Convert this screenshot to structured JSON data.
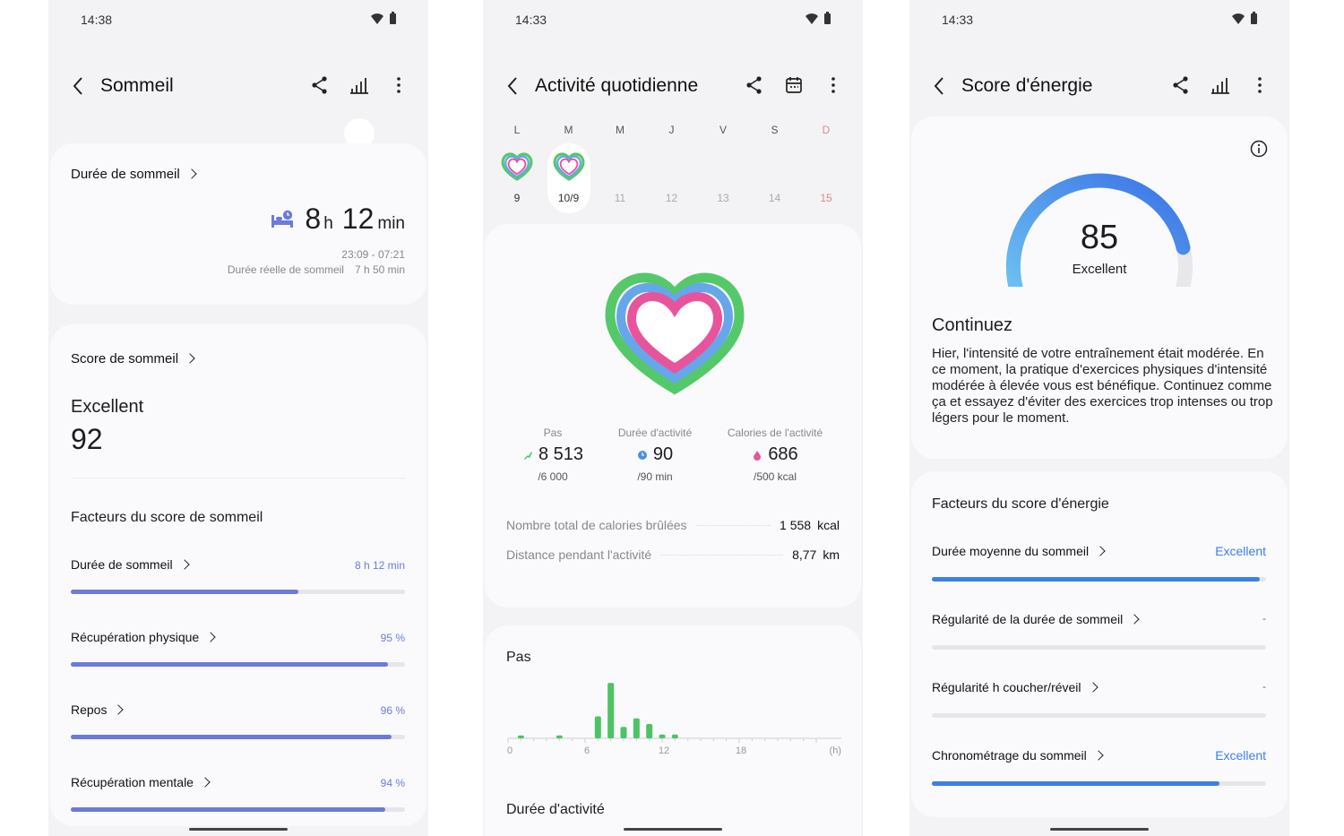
{
  "colors": {
    "accent_sleep": "#6c7bd9",
    "accent_energy": "#3e7ee8",
    "steps_green": "#4cc463",
    "sunday_red": "#e08a8a"
  },
  "screen1": {
    "status_time": "14:38",
    "title": "Sommeil",
    "duration_card": {
      "label": "Durée de sommeil",
      "hours": "8",
      "hours_unit": "h",
      "minutes": "12",
      "minutes_unit": "min",
      "range": "23:09 - 07:21",
      "actual_label": "Durée réelle de sommeil",
      "actual_value": "7 h 50 min"
    },
    "score_card": {
      "label": "Score de sommeil",
      "rating": "Excellent",
      "score": "92",
      "factors_title": "Facteurs du score de sommeil",
      "factors": [
        {
          "label": "Durée de sommeil",
          "value": "8 h 12 min",
          "fill": 0.68
        },
        {
          "label": "Récupération physique",
          "value": "95 %",
          "fill": 0.95
        },
        {
          "label": "Repos",
          "value": "96 %",
          "fill": 0.96
        },
        {
          "label": "Récupération mentale",
          "value": "94 %",
          "fill": 0.94
        }
      ]
    }
  },
  "screen2": {
    "status_time": "14:33",
    "title": "Activité quotidienne",
    "week": [
      {
        "day": "L",
        "date": "9",
        "state": "ring"
      },
      {
        "day": "M",
        "date": "10/9",
        "state": "selected"
      },
      {
        "day": "M",
        "date": "11",
        "state": "future"
      },
      {
        "day": "J",
        "date": "12",
        "state": "future"
      },
      {
        "day": "V",
        "date": "13",
        "state": "future"
      },
      {
        "day": "S",
        "date": "14",
        "state": "future"
      },
      {
        "day": "D",
        "date": "15",
        "state": "sunday"
      }
    ],
    "stats": [
      {
        "label": "Pas",
        "value": "8 513",
        "goal": "/6 000",
        "icon": "steps-icon",
        "color": "#4cc463"
      },
      {
        "label": "Durée d'activité",
        "value": "90",
        "goal": "/90 min",
        "icon": "clock-icon",
        "color": "#4a8fe6"
      },
      {
        "label": "Calories de l'activité",
        "value": "686",
        "goal": "/500 kcal",
        "icon": "flame-icon",
        "color": "#e4559a"
      }
    ],
    "totals": [
      {
        "label": "Nombre total de calories brûlées",
        "value": "1 558",
        "unit": "kcal"
      },
      {
        "label": "Distance pendant l'activité",
        "value": "8,77",
        "unit": "km"
      }
    ],
    "steps_chart_title": "Pas",
    "activity_title": "Durée d'activité",
    "chart_data": {
      "type": "bar",
      "title": "Pas",
      "xlabel": "(h)",
      "x_ticks": [
        "0",
        "6",
        "12",
        "18"
      ],
      "x": [
        1,
        4,
        7,
        8,
        9,
        10,
        11,
        12,
        13
      ],
      "values": [
        150,
        150,
        1150,
        2900,
        600,
        1050,
        750,
        200,
        200
      ],
      "xlim": [
        0,
        24
      ],
      "ylim": [
        0,
        3000
      ]
    }
  },
  "screen3": {
    "status_time": "14:33",
    "title": "Score d'énergie",
    "score": "85",
    "score_fraction": 0.85,
    "rating": "Excellent",
    "heading": "Continuez",
    "body": "Hier, l'intensité de votre entraînement était modérée. En ce moment, la pratique d'exercices physiques d'intensité modérée à élevée vous est bénéfique. Continuez comme ça et essayez d'éviter des exercices trop intenses ou trop légers pour le moment.",
    "factors_title": "Facteurs du score d'énergie",
    "factors": [
      {
        "label": "Durée moyenne du sommeil",
        "value": "Excellent",
        "fill": 0.98
      },
      {
        "label": "Régularité de la durée de sommeil",
        "value": "-",
        "fill": 0
      },
      {
        "label": "Régularité h coucher/réveil",
        "value": "-",
        "fill": 0
      },
      {
        "label": "Chronométrage du sommeil",
        "value": "Excellent",
        "fill": 0.86
      }
    ]
  }
}
